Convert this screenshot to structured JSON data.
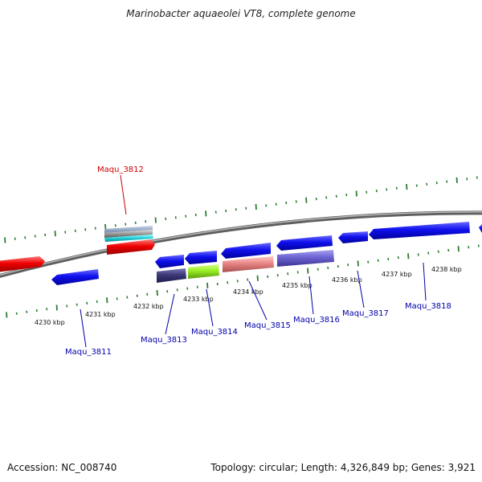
{
  "title": "Marinobacter aquaeolei VT8, complete genome",
  "footer": {
    "accession": "Accession: NC_008740",
    "topology": "Topology: circular; Length: 4,326,849 bp; Genes: 3,921"
  },
  "colors": {
    "backbone": "#8a8a8a",
    "tick": "#2e7d32",
    "forward_label": "#cc0000",
    "reverse_label": "#0000aa"
  },
  "kbp_ticks": [
    {
      "label": "4230 kbp"
    },
    {
      "label": "4231 kbp"
    },
    {
      "label": "4232 kbp"
    },
    {
      "label": "4233 kbp"
    },
    {
      "label": "4234 kbp"
    },
    {
      "label": "4235 kbp"
    },
    {
      "label": "4236 kbp"
    },
    {
      "label": "4237 kbp"
    },
    {
      "label": "4238 kbp"
    }
  ],
  "gene_labels": [
    {
      "name": "Maqu_3812",
      "strand": "forward"
    },
    {
      "name": "Maqu_3811",
      "strand": "reverse"
    },
    {
      "name": "Maqu_3813",
      "strand": "reverse"
    },
    {
      "name": "Maqu_3814",
      "strand": "reverse"
    },
    {
      "name": "Maqu_3815",
      "strand": "reverse"
    },
    {
      "name": "Maqu_3816",
      "strand": "reverse"
    },
    {
      "name": "Maqu_3817",
      "strand": "reverse"
    },
    {
      "name": "Maqu_3818",
      "strand": "reverse"
    }
  ]
}
